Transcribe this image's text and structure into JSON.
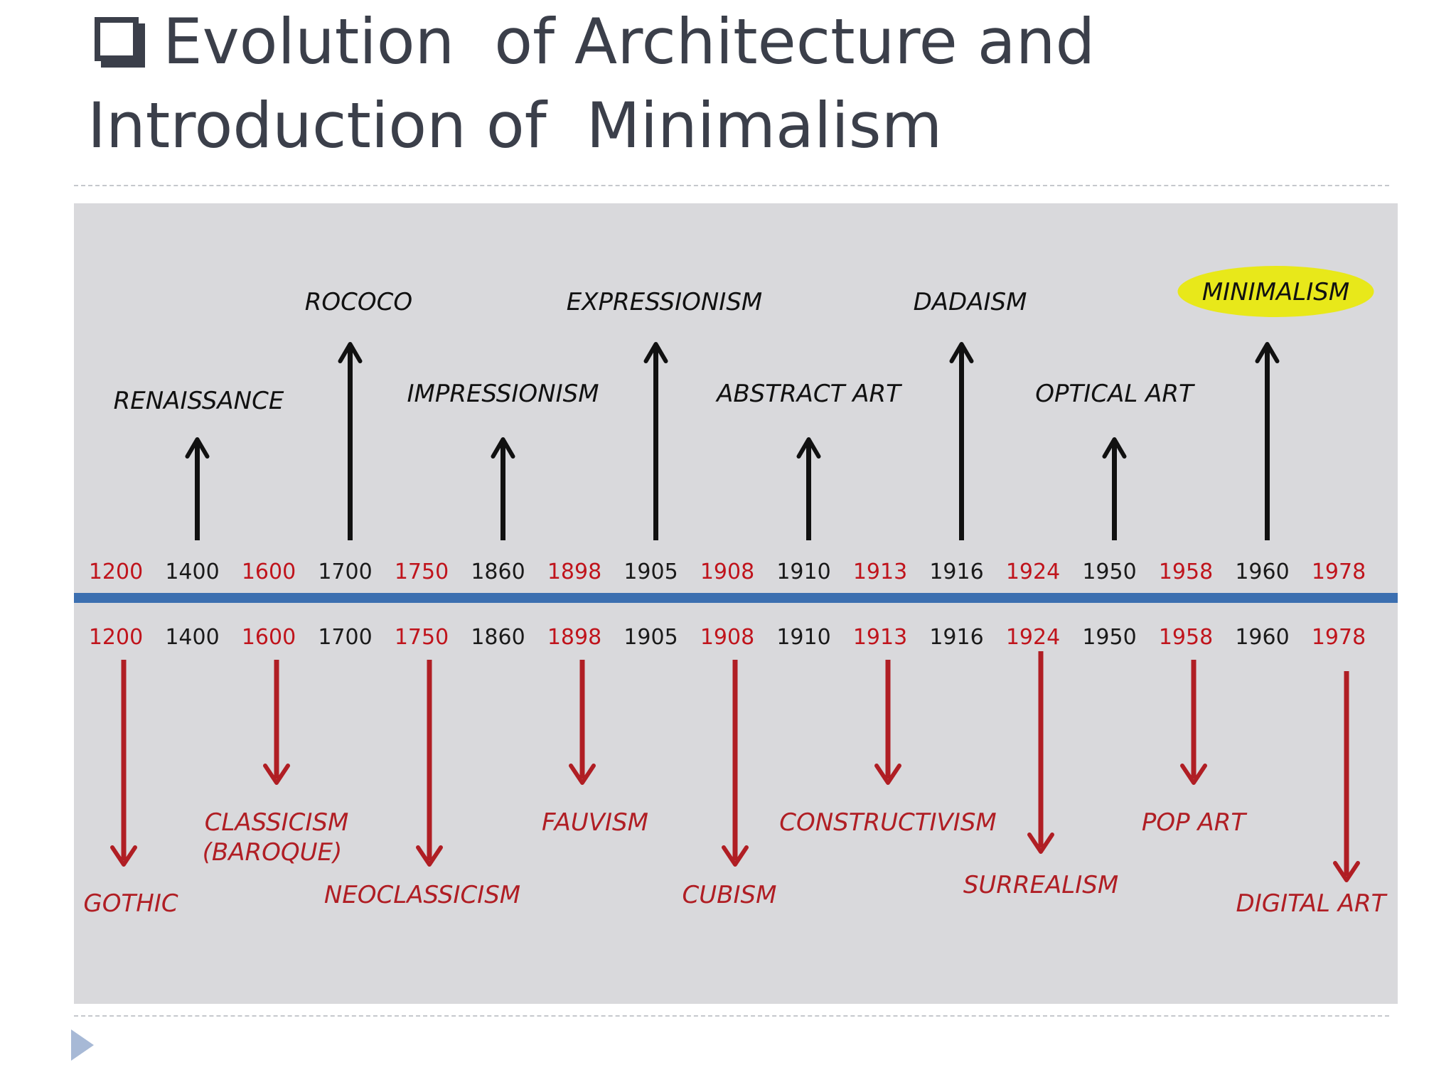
{
  "title": {
    "line1": "Evolution  of Architecture and",
    "line2": "Introduction of  Minimalism"
  },
  "icons": {
    "title_bullet": "checkbox-icon",
    "nav": "play-triangle-icon"
  },
  "colors": {
    "timeline_bar": "#3c6fb0",
    "above_arrow": "#111111",
    "below_arrow": "#b01e24",
    "red_year": "#c0141c",
    "black_year": "#1a1a1a",
    "highlight": "#e8e81a",
    "panel_bg": "#d9d9dc",
    "title_text": "#3b3f4a",
    "nav_triangle": "#a7b9d6"
  },
  "years": [
    "1200",
    "1400",
    "1600",
    "1700",
    "1750",
    "1860",
    "1898",
    "1905",
    "1908",
    "1910",
    "1913",
    "1916",
    "1924",
    "1950",
    "1958",
    "1960",
    "1978"
  ],
  "above_movements": [
    {
      "label": "RENAISSANCE",
      "year": "1400"
    },
    {
      "label": "ROCOCO",
      "year": "1700"
    },
    {
      "label": "IMPRESSIONISM",
      "year": "1860"
    },
    {
      "label": "EXPRESSIONISM",
      "year": "1905"
    },
    {
      "label": "ABSTRACT ART",
      "year": "1910"
    },
    {
      "label": "DADAISM",
      "year": "1916"
    },
    {
      "label": "OPTICAL ART",
      "year": "1950"
    },
    {
      "label": "MINIMALISM",
      "year": "1960",
      "highlighted": true
    }
  ],
  "below_movements": [
    {
      "label": "GOTHIC",
      "year": "1200"
    },
    {
      "label": "CLASSICISM",
      "label2": "(BAROQUE)",
      "year": "1600"
    },
    {
      "label": "NEOCLASSICISM",
      "year": "1750"
    },
    {
      "label": "FAUVISM",
      "year": "1898"
    },
    {
      "label": "CUBISM",
      "year": "1908"
    },
    {
      "label": "CONSTRUCTIVISM",
      "year": "1913"
    },
    {
      "label": "SURREALISM",
      "year": "1924"
    },
    {
      "label": "POP ART",
      "year": "1958"
    },
    {
      "label": "DIGITAL ART",
      "year": "1978"
    }
  ]
}
